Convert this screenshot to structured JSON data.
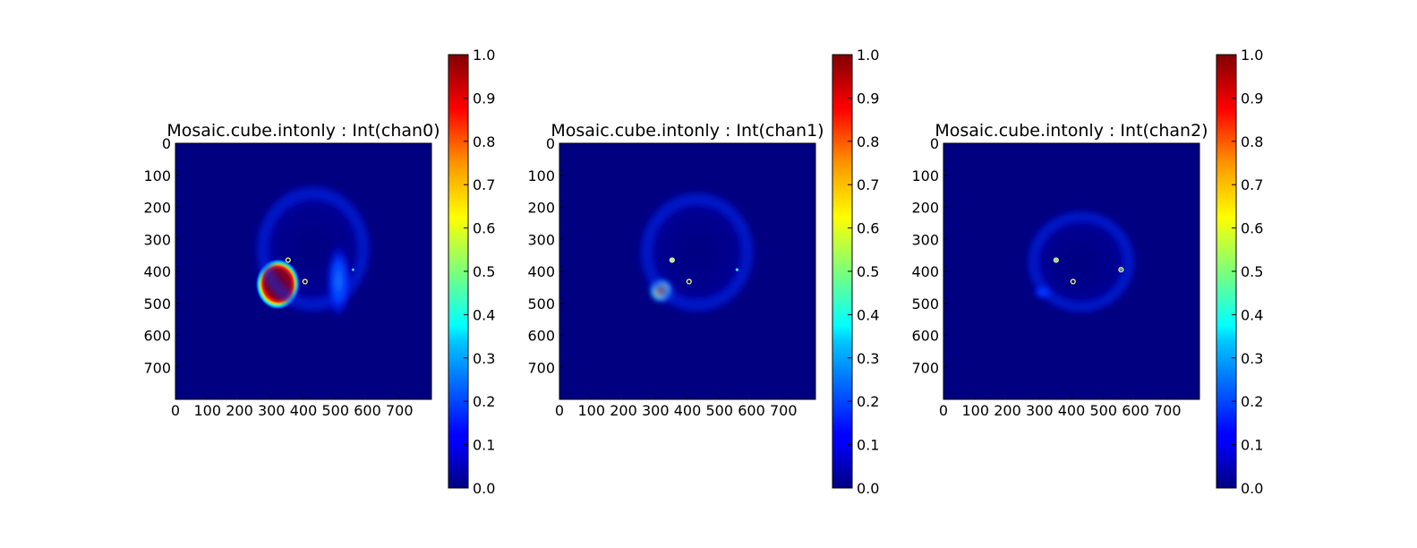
{
  "chart_data": [
    {
      "type": "heatmap",
      "title": "Mosaic.cube.intonly : Int(chan0)",
      "xticks": [
        "0",
        "100",
        "200",
        "300",
        "400",
        "500",
        "600",
        "700"
      ],
      "yticks": [
        "0",
        "100",
        "200",
        "300",
        "400",
        "500",
        "600",
        "700"
      ],
      "xlim": [
        0,
        800
      ],
      "ylim": [
        800,
        0
      ],
      "colormap": "jet",
      "colorbar": {
        "range": [
          0.0,
          1.0
        ],
        "ticks": [
          "0.0",
          "0.1",
          "0.2",
          "0.3",
          "0.4",
          "0.5",
          "0.6",
          "0.7",
          "0.8",
          "0.9",
          "1.0"
        ]
      },
      "features": [
        {
          "x": 320,
          "y": 440,
          "rx": 70,
          "ry": 80,
          "peak": 1.0
        },
        {
          "x": 430,
          "y": 330,
          "rx": 190,
          "ry": 210,
          "peak": 0.18,
          "shape": "ring"
        },
        {
          "x": 510,
          "y": 430,
          "rx": 40,
          "ry": 120,
          "peak": 0.25
        },
        {
          "x": 555,
          "y": 395,
          "rx": 6,
          "ry": 6,
          "peak": 0.3
        }
      ],
      "markers": [
        {
          "x": 352,
          "y": 365
        },
        {
          "x": 405,
          "y": 432
        }
      ]
    },
    {
      "type": "heatmap",
      "title": "Mosaic.cube.intonly : Int(chan1)",
      "xticks": [
        "0",
        "100",
        "200",
        "300",
        "400",
        "500",
        "600",
        "700"
      ],
      "yticks": [
        "0",
        "100",
        "200",
        "300",
        "400",
        "500",
        "600",
        "700"
      ],
      "xlim": [
        0,
        800
      ],
      "ylim": [
        800,
        0
      ],
      "colormap": "jet",
      "colorbar": {
        "range": [
          0.0,
          1.0
        ],
        "ticks": [
          "0.0",
          "0.1",
          "0.2",
          "0.3",
          "0.4",
          "0.5",
          "0.6",
          "0.7",
          "0.8",
          "0.9",
          "1.0"
        ]
      },
      "features": [
        {
          "x": 318,
          "y": 460,
          "rx": 38,
          "ry": 38,
          "peak": 0.8
        },
        {
          "x": 430,
          "y": 340,
          "rx": 190,
          "ry": 200,
          "peak": 0.15,
          "shape": "ring"
        },
        {
          "x": 555,
          "y": 395,
          "rx": 7,
          "ry": 7,
          "peak": 0.9
        },
        {
          "x": 352,
          "y": 365,
          "rx": 10,
          "ry": 10,
          "peak": 0.4
        }
      ],
      "markers": [
        {
          "x": 352,
          "y": 365
        },
        {
          "x": 405,
          "y": 432
        }
      ]
    },
    {
      "type": "heatmap",
      "title": "Mosaic.cube.intonly : Int(chan2)",
      "xticks": [
        "0",
        "100",
        "200",
        "300",
        "400",
        "500",
        "600",
        "700"
      ],
      "yticks": [
        "0",
        "100",
        "200",
        "300",
        "400",
        "500",
        "600",
        "700"
      ],
      "xlim": [
        0,
        800
      ],
      "ylim": [
        800,
        0
      ],
      "colormap": "jet",
      "colorbar": {
        "range": [
          0.0,
          1.0
        ],
        "ticks": [
          "0.0",
          "0.1",
          "0.2",
          "0.3",
          "0.4",
          "0.5",
          "0.6",
          "0.7",
          "0.8",
          "0.9",
          "1.0"
        ]
      },
      "features": [
        {
          "x": 310,
          "y": 465,
          "rx": 30,
          "ry": 22,
          "peak": 0.25
        },
        {
          "x": 430,
          "y": 370,
          "rx": 180,
          "ry": 170,
          "peak": 0.1,
          "shape": "ring"
        },
        {
          "x": 555,
          "y": 395,
          "rx": 5,
          "ry": 5,
          "peak": 0.6
        },
        {
          "x": 352,
          "y": 365,
          "rx": 8,
          "ry": 8,
          "peak": 0.3
        }
      ],
      "markers": [
        {
          "x": 352,
          "y": 365
        },
        {
          "x": 405,
          "y": 432
        },
        {
          "x": 555,
          "y": 395
        }
      ]
    }
  ]
}
